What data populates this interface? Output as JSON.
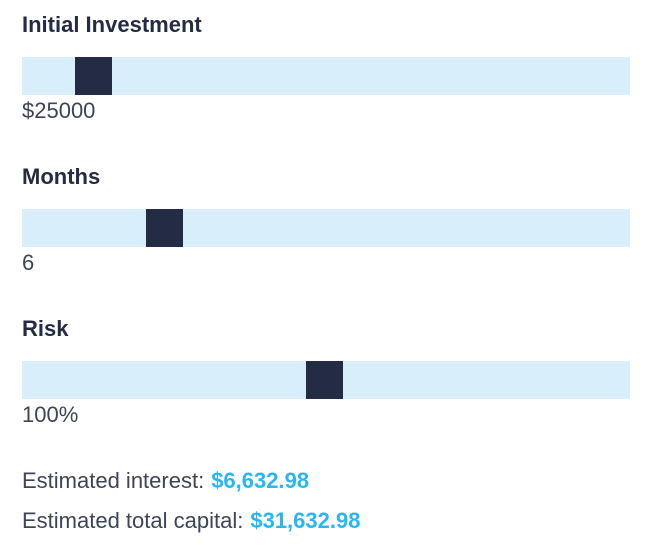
{
  "controls": [
    {
      "label": "Initial Investment",
      "display_value": "$25000",
      "thumb_left_pct": 8.7
    },
    {
      "label": "Months",
      "display_value": "6",
      "thumb_left_pct": 20.4
    },
    {
      "label": "Risk",
      "display_value": "100%",
      "thumb_left_pct": 46.7
    }
  ],
  "results": [
    {
      "label": "Estimated interest:",
      "value": "$6,632.98"
    },
    {
      "label": "Estimated total capital:",
      "value": "$31,632.98"
    }
  ],
  "colors": {
    "track": "#D8EFFB",
    "thumb": "#242B45",
    "heading": "#252B42",
    "text": "#3D4457",
    "accent": "#29B6F6",
    "bg": "#FFFFFF"
  }
}
